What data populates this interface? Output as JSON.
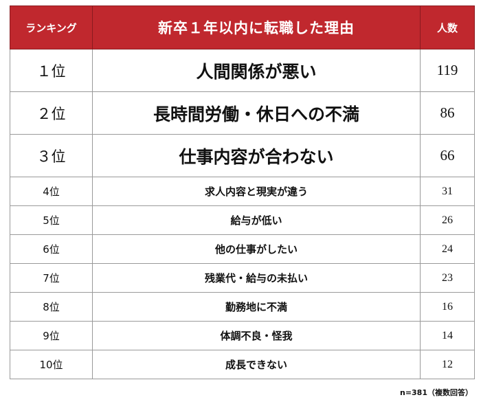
{
  "colors": {
    "header_bg": "#c0282e",
    "header_text": "#ffffff",
    "border": "#999999"
  },
  "header": {
    "rank": "ランキング",
    "title": "新卒１年以内に転職した理由",
    "count": "人数"
  },
  "chart_data": {
    "type": "table",
    "columns": [
      "ランキング",
      "新卒１年以内に転職した理由",
      "人数"
    ],
    "rows": [
      {
        "rank": "１位",
        "reason": "人間関係が悪い",
        "count": "119"
      },
      {
        "rank": "２位",
        "reason": "長時間労働・休日への不満",
        "count": "86"
      },
      {
        "rank": "３位",
        "reason": "仕事内容が合わない",
        "count": "66"
      },
      {
        "rank": "4位",
        "reason": "求人内容と現実が違う",
        "count": "31"
      },
      {
        "rank": "5位",
        "reason": "給与が低い",
        "count": "26"
      },
      {
        "rank": "6位",
        "reason": "他の仕事がしたい",
        "count": "24"
      },
      {
        "rank": "7位",
        "reason": "残業代・給与の未払い",
        "count": "23"
      },
      {
        "rank": "8位",
        "reason": "勤務地に不満",
        "count": "16"
      },
      {
        "rank": "9位",
        "reason": "体調不良・怪我",
        "count": "14"
      },
      {
        "rank": "10位",
        "reason": "成長できない",
        "count": "12"
      }
    ]
  },
  "note": "n=381（複数回答）"
}
